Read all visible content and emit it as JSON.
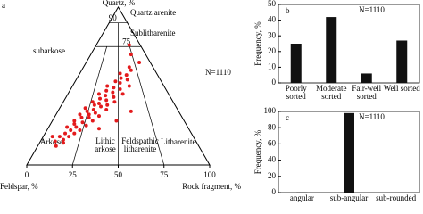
{
  "chart_data": [
    {
      "type": "ternary",
      "panel_label": "a",
      "apex_labels": [
        "Quartz, %",
        "Quartz arenite"
      ],
      "bottom_labels": {
        "left": "Feldspar, %",
        "right": "Rock fragment, %"
      },
      "xlim": [
        0,
        100
      ],
      "xticks": [
        0,
        25,
        50,
        75,
        100
      ],
      "quartz_ticks": [
        90,
        75
      ],
      "note": "N=1110",
      "color": "#e31a1c",
      "regions": [
        "subarkose",
        "Sublitharenite",
        "Arkose",
        "Lithic arkose",
        "Feldspathic litharenite",
        "Litharenite"
      ],
      "quartz": [
        12,
        14,
        15,
        16,
        18,
        18,
        20,
        20,
        22,
        22,
        24,
        24,
        25,
        26,
        27,
        28,
        28,
        30,
        30,
        31,
        32,
        32,
        33,
        34,
        35,
        35,
        36,
        37,
        38,
        38,
        39,
        40,
        40,
        41,
        42,
        43,
        44,
        45,
        45,
        46,
        47,
        48,
        49,
        50,
        50,
        52,
        53,
        54,
        55,
        57,
        58,
        60,
        62,
        65,
        70,
        76,
        28,
        34,
        23,
        18
      ],
      "rock_fragment": [
        10,
        13,
        8,
        12,
        14,
        9,
        11,
        16,
        13,
        18,
        10,
        15,
        20,
        13,
        17,
        22,
        12,
        15,
        19,
        24,
        13,
        18,
        21,
        16,
        26,
        19,
        14,
        22,
        18,
        25,
        20,
        28,
        16,
        23,
        19,
        26,
        21,
        30,
        17,
        24,
        20,
        27,
        23,
        31,
        19,
        25,
        22,
        28,
        24,
        26,
        22,
        27,
        25,
        29,
        22,
        18,
        35,
        40,
        28,
        5
      ]
    },
    {
      "type": "bar",
      "panel_label": "b",
      "note": "N=1110",
      "y_label": "Frequency, %",
      "categories": [
        "Poorly sorted",
        "Moderate sorted",
        "Fair-well sorted",
        "Well sorted"
      ],
      "values": [
        25,
        42,
        6,
        27
      ],
      "color": "#111111",
      "ylim": [
        0,
        50
      ],
      "yticks": [
        0,
        10,
        20,
        30,
        40,
        50
      ]
    },
    {
      "type": "bar",
      "panel_label": "c",
      "note": "N=1110",
      "y_label": "Frequency, %",
      "categories": [
        "angular",
        "sub-angular",
        "sub-rounded"
      ],
      "values": [
        0.5,
        98,
        0
      ],
      "color": "#111111",
      "ylim": [
        0,
        100
      ],
      "yticks": [
        0,
        20,
        40,
        60,
        80,
        100
      ]
    }
  ]
}
